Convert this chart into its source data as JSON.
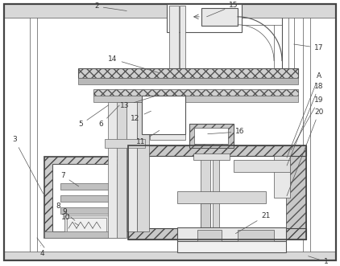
{
  "bg_color": "#ffffff",
  "lc": "#666666",
  "lc_dark": "#333333",
  "fig_w": 4.22,
  "fig_h": 3.31,
  "dpi": 100
}
